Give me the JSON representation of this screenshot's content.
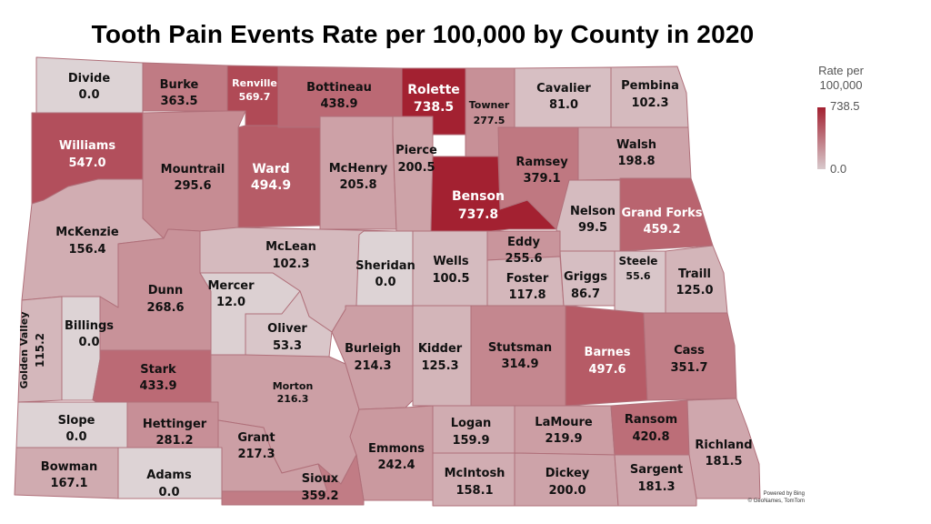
{
  "title": "Tooth Pain Events Rate per 100,000 by County in 2020",
  "legend": {
    "title_line1": "Rate per",
    "title_line2": "100,000",
    "max_label": "738.5",
    "min_label": "0.0",
    "max_value": 738.5,
    "min_value": 0,
    "color_high": "#a32131",
    "color_low": "#ddd3d5"
  },
  "credits": {
    "line1": "Powered by Bing",
    "line2": "© GeoNames, TomTom"
  },
  "counties": [
    {
      "id": "divide",
      "name": "Divide",
      "rate": "0.0",
      "value": 0.0
    },
    {
      "id": "burke",
      "name": "Burke",
      "rate": "363.5",
      "value": 363.5
    },
    {
      "id": "renville",
      "name": "Renville",
      "rate": "569.7",
      "value": 569.7
    },
    {
      "id": "bottineau",
      "name": "Bottineau",
      "rate": "438.9",
      "value": 438.9
    },
    {
      "id": "rolette",
      "name": "Rolette",
      "rate": "738.5",
      "value": 738.5
    },
    {
      "id": "towner",
      "name": "Towner",
      "rate": "277.5",
      "value": 277.5
    },
    {
      "id": "cavalier",
      "name": "Cavalier",
      "rate": "81.0",
      "value": 81.0
    },
    {
      "id": "pembina",
      "name": "Pembina",
      "rate": "102.3",
      "value": 102.3
    },
    {
      "id": "williams",
      "name": "Williams",
      "rate": "547.0",
      "value": 547.0
    },
    {
      "id": "mountrail",
      "name": "Mountrail",
      "rate": "295.6",
      "value": 295.6
    },
    {
      "id": "ward",
      "name": "Ward",
      "rate": "494.9",
      "value": 494.9
    },
    {
      "id": "mchenry",
      "name": "McHenry",
      "rate": "205.8",
      "value": 205.8
    },
    {
      "id": "pierce",
      "name": "Pierce",
      "rate": "200.5",
      "value": 200.5
    },
    {
      "id": "benson",
      "name": "Benson",
      "rate": "737.8",
      "value": 737.8
    },
    {
      "id": "ramsey",
      "name": "Ramsey",
      "rate": "379.1",
      "value": 379.1
    },
    {
      "id": "walsh",
      "name": "Walsh",
      "rate": "198.8",
      "value": 198.8
    },
    {
      "id": "nelson",
      "name": "Nelson",
      "rate": "99.5",
      "value": 99.5
    },
    {
      "id": "grandforks",
      "name": "Grand Forks",
      "rate": "459.2",
      "value": 459.2
    },
    {
      "id": "mckenzie",
      "name": "McKenzie",
      "rate": "156.4",
      "value": 156.4
    },
    {
      "id": "mclean",
      "name": "McLean",
      "rate": "102.3",
      "value": 102.3
    },
    {
      "id": "sheridan",
      "name": "Sheridan",
      "rate": "0.0",
      "value": 0.0
    },
    {
      "id": "wells",
      "name": "Wells",
      "rate": "100.5",
      "value": 100.5
    },
    {
      "id": "eddy",
      "name": "Eddy",
      "rate": "255.6",
      "value": 255.6
    },
    {
      "id": "foster",
      "name": "Foster",
      "rate": "117.8",
      "value": 117.8
    },
    {
      "id": "griggs",
      "name": "Griggs",
      "rate": "86.7",
      "value": 86.7
    },
    {
      "id": "steele",
      "name": "Steele",
      "rate": "55.6",
      "value": 55.6
    },
    {
      "id": "traill",
      "name": "Traill",
      "rate": "125.0",
      "value": 125.0
    },
    {
      "id": "dunn",
      "name": "Dunn",
      "rate": "268.6",
      "value": 268.6
    },
    {
      "id": "mercer",
      "name": "Mercer",
      "rate": "12.0",
      "value": 12.0
    },
    {
      "id": "oliver",
      "name": "Oliver",
      "rate": "53.3",
      "value": 53.3
    },
    {
      "id": "goldenvalley",
      "name": "Golden Valley",
      "rate": "115.2",
      "value": 115.2
    },
    {
      "id": "billings",
      "name": "Billings",
      "rate": "0.0",
      "value": 0.0
    },
    {
      "id": "stark",
      "name": "Stark",
      "rate": "433.9",
      "value": 433.9
    },
    {
      "id": "morton",
      "name": "Morton",
      "rate": "216.3",
      "value": 216.3
    },
    {
      "id": "burleigh",
      "name": "Burleigh",
      "rate": "214.3",
      "value": 214.3
    },
    {
      "id": "kidder",
      "name": "Kidder",
      "rate": "125.3",
      "value": 125.3
    },
    {
      "id": "stutsman",
      "name": "Stutsman",
      "rate": "314.9",
      "value": 314.9
    },
    {
      "id": "barnes",
      "name": "Barnes",
      "rate": "497.6",
      "value": 497.6
    },
    {
      "id": "cass",
      "name": "Cass",
      "rate": "351.7",
      "value": 351.7
    },
    {
      "id": "slope",
      "name": "Slope",
      "rate": "0.0",
      "value": 0.0
    },
    {
      "id": "hettinger",
      "name": "Hettinger",
      "rate": "281.2",
      "value": 281.2
    },
    {
      "id": "grant",
      "name": "Grant",
      "rate": "217.3",
      "value": 217.3
    },
    {
      "id": "emmons",
      "name": "Emmons",
      "rate": "242.4",
      "value": 242.4
    },
    {
      "id": "logan",
      "name": "Logan",
      "rate": "159.9",
      "value": 159.9
    },
    {
      "id": "lamoure",
      "name": "LaMoure",
      "rate": "219.9",
      "value": 219.9
    },
    {
      "id": "ransom",
      "name": "Ransom",
      "rate": "420.8",
      "value": 420.8
    },
    {
      "id": "richland",
      "name": "Richland",
      "rate": "181.5",
      "value": 181.5
    },
    {
      "id": "bowman",
      "name": "Bowman",
      "rate": "167.1",
      "value": 167.1
    },
    {
      "id": "adams",
      "name": "Adams",
      "rate": "0.0",
      "value": 0.0
    },
    {
      "id": "sioux",
      "name": "Sioux",
      "rate": "359.2",
      "value": 359.2
    },
    {
      "id": "mcintosh",
      "name": "McIntosh",
      "rate": "158.1",
      "value": 158.1
    },
    {
      "id": "dickey",
      "name": "Dickey",
      "rate": "200.0",
      "value": 200.0
    },
    {
      "id": "sargent",
      "name": "Sargent",
      "rate": "181.3",
      "value": 181.3
    }
  ]
}
